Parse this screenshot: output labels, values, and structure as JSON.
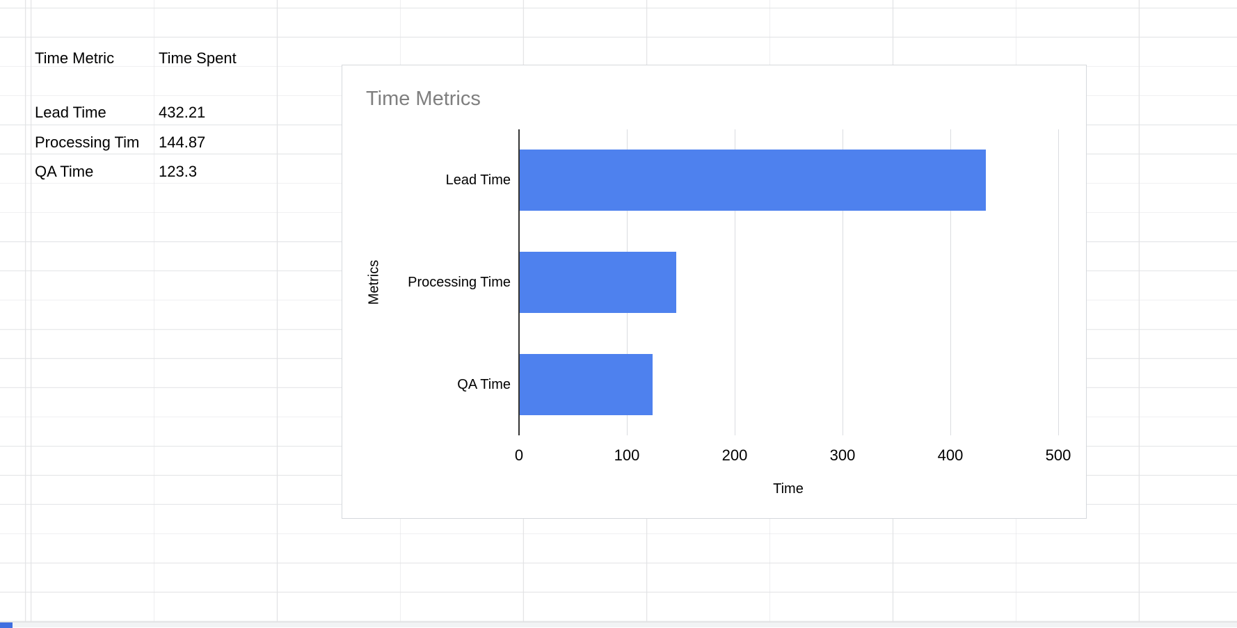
{
  "sheet": {
    "header": {
      "metric": "Time Metric",
      "spent": "Time Spent"
    },
    "rows": [
      {
        "metric": "Lead Time",
        "value": "432.21"
      },
      {
        "metric": "Processing Tim",
        "value": "144.87"
      },
      {
        "metric": "QA Time",
        "value": "123.3"
      }
    ]
  },
  "chart": {
    "title": "Time Metrics",
    "bar_color": "#4e81ee",
    "title_color": "#7f7f7f"
  },
  "chart_data": {
    "type": "bar",
    "orientation": "horizontal",
    "title": "Time Metrics",
    "categories": [
      "Lead Time",
      "Processing Time",
      "QA Time"
    ],
    "values": [
      432.21,
      144.87,
      123.3
    ],
    "xlabel": "Time",
    "ylabel": "Metrics",
    "xlim": [
      0,
      500
    ],
    "xticks": [
      0,
      100,
      200,
      300,
      400,
      500
    ],
    "grid": true,
    "legend": false
  }
}
